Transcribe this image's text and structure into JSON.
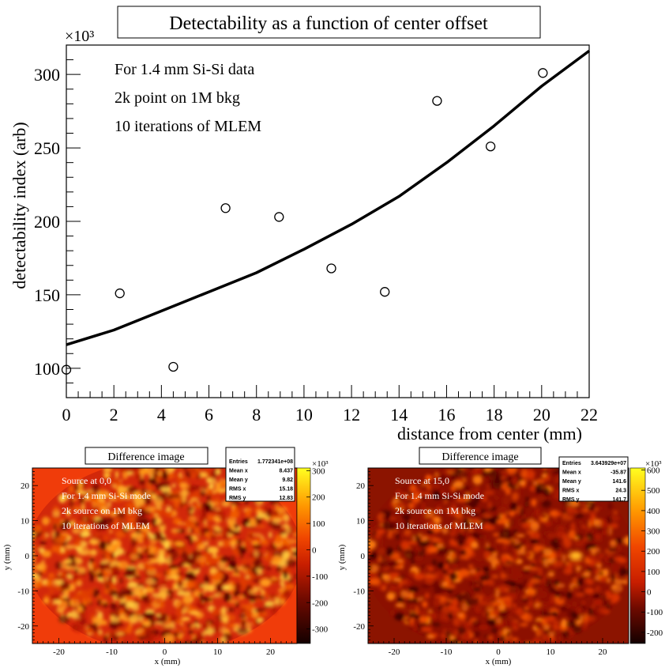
{
  "chart_data": [
    {
      "type": "scatter",
      "title": "Detectability as a function of center offset",
      "xlabel": "distance from center (mm)",
      "ylabel": "detectability index (arb)",
      "y_multiplier": "×10³",
      "xlim": [
        0,
        22
      ],
      "ylim": [
        80,
        320
      ],
      "x_ticks": [
        "0",
        "2",
        "4",
        "6",
        "8",
        "10",
        "12",
        "14",
        "16",
        "18",
        "20",
        "22"
      ],
      "y_ticks": [
        "100",
        "150",
        "200",
        "250",
        "300"
      ],
      "annotations": [
        "For 1.4 mm Si-Si data",
        "2k point on 1M bkg",
        "10 iterations of MLEM"
      ],
      "series": [
        {
          "x": [
            0,
            2.25,
            4.5,
            6.7,
            8.95,
            11.15,
            13.4,
            15.6,
            17.85,
            20.05
          ],
          "y": [
            99,
            151,
            101,
            209,
            203,
            168,
            152,
            282,
            251,
            301
          ]
        }
      ],
      "fit_curve": {
        "x": [
          0,
          2,
          4,
          6,
          8,
          10,
          12,
          14,
          16,
          18,
          20,
          22
        ],
        "y": [
          116,
          126,
          139,
          152,
          165,
          181,
          198,
          217,
          240,
          265,
          292,
          316
        ]
      },
      "grid": false
    },
    {
      "type": "heatmap",
      "title": "Difference image",
      "xlabel": "x (mm)",
      "ylabel": "y (mm)",
      "xlim": [
        -25,
        25
      ],
      "ylim": [
        -25,
        25
      ],
      "x_ticks": [
        "-20",
        "-10",
        "0",
        "10",
        "20"
      ],
      "y_ticks": [
        "20",
        "10",
        "0",
        "-10",
        "-20"
      ],
      "annotations": [
        "Source at 0,0",
        "For 1.4 mm Si-Si mode",
        "2k source on 1M bkg",
        "10 iterations of MLEM"
      ],
      "colorbar_multiplier": "×10³",
      "colorbar_ticks": [
        "300",
        "200",
        "100",
        "0",
        "-100",
        "-200",
        "-300"
      ],
      "stats": [
        {
          "label": "Entries",
          "value": "1.772341e+08"
        },
        {
          "label": "Mean x",
          "value": "8.437"
        },
        {
          "label": "Mean y",
          "value": "9.82"
        },
        {
          "label": "RMS x",
          "value": "15.18"
        },
        {
          "label": "RMS y",
          "value": "12.83"
        }
      ]
    },
    {
      "type": "heatmap",
      "title": "Difference image",
      "xlabel": "x (mm)",
      "ylabel": "y (mm)",
      "xlim": [
        -25,
        25
      ],
      "ylim": [
        -25,
        25
      ],
      "x_ticks": [
        "-20",
        "-10",
        "0",
        "10",
        "20"
      ],
      "y_ticks": [
        "20",
        "10",
        "0",
        "-10",
        "-20"
      ],
      "annotations": [
        "Source at 15,0",
        "For 1.4 mm Si-Si mode",
        "2k source on 1M bkg",
        "10 iterations of MLEM"
      ],
      "colorbar_multiplier": "×10³",
      "colorbar_ticks": [
        "600",
        "500",
        "400",
        "300",
        "200",
        "100",
        "0",
        "-100",
        "-200"
      ],
      "stats": [
        {
          "label": "Entries",
          "value": "3.643929e+07"
        },
        {
          "label": "Mean x",
          "value": "-35.87"
        },
        {
          "label": "Mean y",
          "value": "141.6"
        },
        {
          "label": "RMS x",
          "value": "24.3"
        },
        {
          "label": "RMS y",
          "value": "141.7"
        }
      ]
    }
  ]
}
